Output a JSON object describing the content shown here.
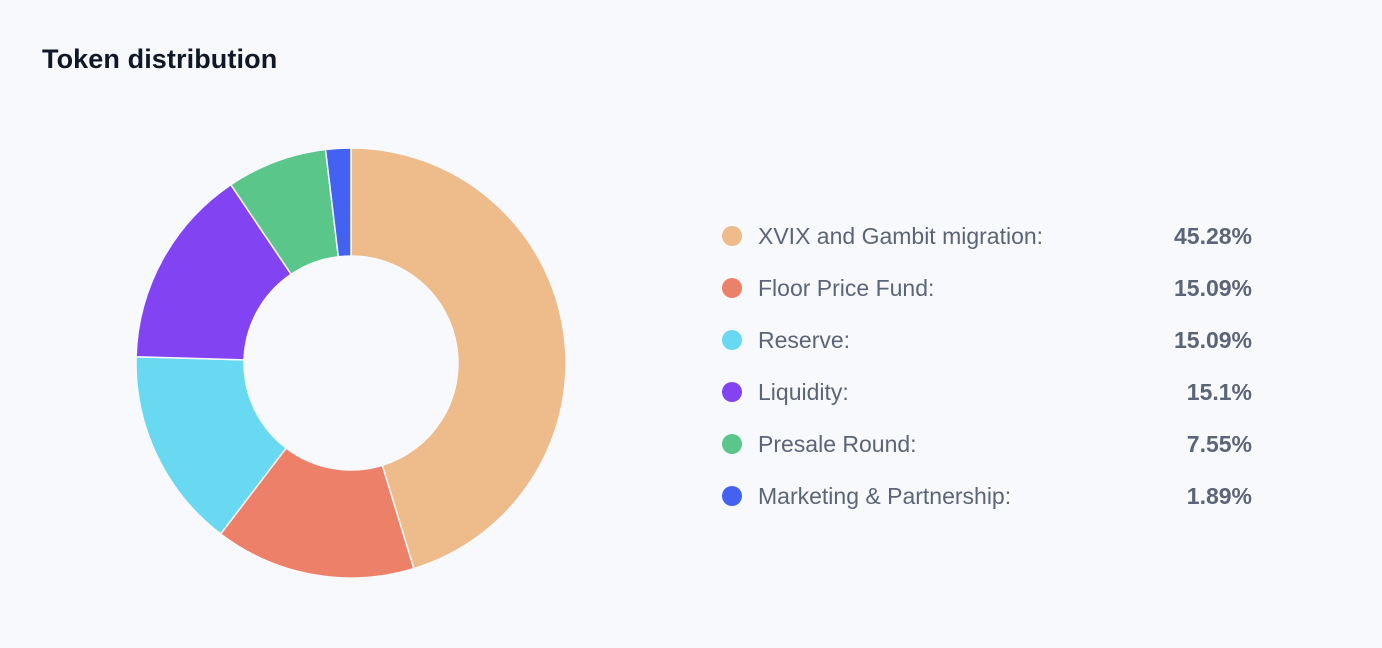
{
  "title": "Token distribution",
  "chart_data": {
    "type": "pie",
    "title": "Token distribution",
    "donut": true,
    "legend_position": "right",
    "categories": [
      "XVIX and Gambit migration:",
      "Floor Price Fund:",
      "Reserve:",
      "Liquidity:",
      "Presale Round:",
      "Marketing & Partnership:"
    ],
    "values": [
      45.28,
      15.09,
      15.09,
      15.1,
      7.55,
      1.89
    ],
    "value_labels": [
      "45.28%",
      "15.09%",
      "15.09%",
      "15.1%",
      "7.55%",
      "1.89%"
    ],
    "colors": [
      "#edbc8a",
      "#ed8068",
      "#68d9f1",
      "#8244f3",
      "#5bc689",
      "#4362f2"
    ]
  }
}
